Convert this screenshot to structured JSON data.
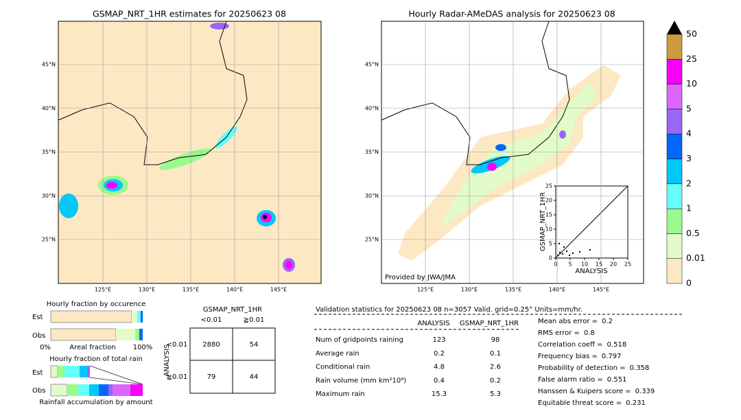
{
  "left_map": {
    "title": "GSMAP_NRT_1HR estimates for 20250623 08",
    "lat_labels": [
      "45°N",
      "40°N",
      "35°N",
      "30°N",
      "25°N"
    ],
    "lon_labels": [
      "125°E",
      "130°E",
      "135°E",
      "140°E",
      "145°E"
    ]
  },
  "right_map": {
    "title": "Hourly Radar-AMeDAS analysis for 20250623 08",
    "lat_labels": [
      "45°N",
      "40°N",
      "35°N",
      "30°N",
      "25°N"
    ],
    "lon_labels": [
      "125°E",
      "130°E",
      "135°E",
      "140°E",
      "145°E"
    ],
    "credit": "Provided by JWA/JMA"
  },
  "colorbar": {
    "labels": [
      "0",
      "0.01",
      "0.5",
      "1",
      "2",
      "3",
      "4",
      "5",
      "10",
      "25",
      "50"
    ],
    "colors": [
      "#fce8c3",
      "#e2fbc9",
      "#9afa8c",
      "#66fffa",
      "#00c8fa",
      "#0068fa",
      "#9966fa",
      "#dc66fa",
      "#fa00fa",
      "#cd9a3e"
    ]
  },
  "scatter": {
    "xlabel": "ANALYSIS",
    "ylabel": "GSMAP_NRT_1HR",
    "xticks": [
      0,
      5,
      10,
      15,
      20,
      25
    ],
    "yticks": [
      0,
      5,
      10,
      15,
      20,
      25
    ],
    "xlim": [
      0,
      25
    ],
    "ylim": [
      0,
      25
    ]
  },
  "occurrence": {
    "title": "Hourly fraction by occurence",
    "rows": [
      "Est",
      "Obs"
    ],
    "axis_left": "0%",
    "axis_mid": "Areal fraction",
    "axis_right": "100%"
  },
  "total_rain": {
    "title": "Hourly fraction of total rain",
    "rows": [
      "Est",
      "Obs"
    ],
    "footer": "Rainfall accumulation by amount"
  },
  "contingency": {
    "title": "GSMAP_NRT_1HR",
    "columns": [
      "<0.01",
      "≧0.01"
    ],
    "row_axis": "ANALYSIS",
    "rows": [
      "<0.01",
      "≧0.01"
    ],
    "cells": [
      [
        2880,
        54
      ],
      [
        79,
        44
      ]
    ]
  },
  "validation": {
    "header": "Validation statistics for 20250623 08  n=3057 Valid. grid=0.25° Units=mm/hr.",
    "columns": [
      "ANALYSIS",
      "GSMAP_NRT_1HR"
    ],
    "rows": [
      {
        "label": "Num of gridpoints raining",
        "values": [
          123,
          98
        ]
      },
      {
        "label": "Average rain",
        "values": [
          0.2,
          0.1
        ]
      },
      {
        "label": "Conditional rain",
        "values": [
          4.8,
          2.6
        ]
      },
      {
        "label": "Rain volume (mm km²10⁶)",
        "values": [
          0.4,
          0.2
        ]
      },
      {
        "label": "Maximum rain",
        "values": [
          15.3,
          5.3
        ]
      }
    ],
    "scores": [
      {
        "label": "Mean abs error =",
        "value": 0.2
      },
      {
        "label": "RMS error =",
        "value": 0.8
      },
      {
        "label": "Correlation coeff =",
        "value": 0.518
      },
      {
        "label": "Frequency bias =",
        "value": 0.797
      },
      {
        "label": "Probability of detection =",
        "value": 0.358
      },
      {
        "label": "False alarm ratio =",
        "value": 0.551
      },
      {
        "label": "Hanssen & Kuipers score =",
        "value": 0.339
      },
      {
        "label": "Equitable threat score =",
        "value": 0.231
      }
    ]
  }
}
